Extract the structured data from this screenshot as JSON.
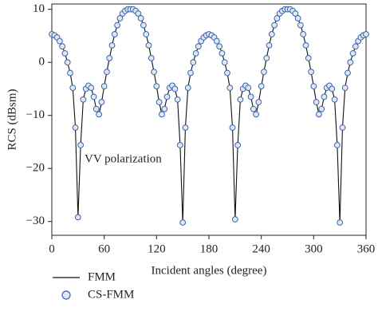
{
  "chart_data": {
    "type": "line",
    "y_label": "RCS (dBsm)",
    "x_label": "Incident angles (degree)",
    "annotation": "VV polarization",
    "x": [
      0,
      3,
      6,
      9,
      12,
      15,
      18,
      21,
      24,
      27,
      30,
      33,
      36,
      39,
      42,
      45,
      48,
      51,
      54,
      57,
      60,
      63,
      66,
      69,
      72,
      75,
      78,
      81,
      84,
      87,
      90,
      93,
      96,
      99,
      102,
      105,
      108,
      111,
      114,
      117,
      120,
      123,
      126,
      129,
      132,
      135,
      138,
      141,
      144,
      147,
      150,
      153,
      156,
      159,
      162,
      165,
      168,
      171,
      174,
      177,
      180,
      183,
      186,
      189,
      192,
      195,
      198,
      201,
      204,
      207,
      210,
      213,
      216,
      219,
      222,
      225,
      228,
      231,
      234,
      237,
      240,
      243,
      246,
      249,
      252,
      255,
      258,
      261,
      264,
      267,
      270,
      273,
      276,
      279,
      282,
      285,
      288,
      291,
      294,
      297,
      300,
      303,
      306,
      309,
      312,
      315,
      318,
      321,
      324,
      327,
      330,
      333,
      336,
      339,
      342,
      345,
      348,
      351,
      354,
      357,
      360
    ],
    "series": [
      {
        "name": "FMM",
        "color": "#111111",
        "marker": "line",
        "values": [
          5.3,
          5.1,
          4.7,
          4.0,
          3.0,
          1.7,
          0.0,
          -2.0,
          -4.8,
          -12.3,
          -29.2,
          -15.6,
          -7.0,
          -5.0,
          -4.4,
          -4.8,
          -6.5,
          -8.8,
          -9.8,
          -7.5,
          -4.5,
          -1.8,
          0.8,
          3.2,
          5.3,
          7.0,
          8.3,
          9.2,
          9.7,
          10.0,
          10.0,
          10.0,
          9.7,
          9.2,
          8.3,
          7.0,
          5.3,
          3.2,
          0.8,
          -1.8,
          -4.5,
          -7.5,
          -9.8,
          -8.8,
          -6.5,
          -4.8,
          -4.4,
          -5.0,
          -7.0,
          -15.6,
          -30.2,
          -12.3,
          -4.8,
          -2.0,
          0.0,
          1.7,
          3.0,
          4.0,
          4.7,
          5.1,
          5.3,
          5.1,
          4.7,
          4.0,
          3.0,
          1.7,
          0.0,
          -2.0,
          -4.8,
          -12.3,
          -29.6,
          -15.6,
          -7.0,
          -5.0,
          -4.4,
          -4.8,
          -6.5,
          -8.8,
          -9.8,
          -7.5,
          -4.5,
          -1.8,
          0.8,
          3.2,
          5.3,
          7.0,
          8.3,
          9.2,
          9.7,
          10.0,
          10.0,
          10.0,
          9.7,
          9.2,
          8.3,
          7.0,
          5.3,
          3.2,
          0.8,
          -1.8,
          -4.5,
          -7.5,
          -9.8,
          -8.8,
          -6.5,
          -4.8,
          -4.4,
          -5.0,
          -7.0,
          -15.6,
          -30.2,
          -12.3,
          -4.8,
          -2.0,
          0.0,
          1.7,
          3.0,
          4.0,
          4.7,
          5.1,
          5.3
        ]
      },
      {
        "name": "CS-FMM",
        "color": "#3a63a8",
        "fill": "#dfe7f4",
        "marker": "circle",
        "values": [
          5.3,
          5.1,
          4.7,
          4.0,
          3.0,
          1.7,
          0.0,
          -2.0,
          -4.8,
          -12.3,
          -29.2,
          -15.6,
          -7.0,
          -5.0,
          -4.4,
          -4.8,
          -6.5,
          -8.8,
          -9.8,
          -7.5,
          -4.5,
          -1.8,
          0.8,
          3.2,
          5.3,
          7.0,
          8.3,
          9.2,
          9.7,
          10.0,
          10.0,
          10.0,
          9.7,
          9.2,
          8.3,
          7.0,
          5.3,
          3.2,
          0.8,
          -1.8,
          -4.5,
          -7.5,
          -9.8,
          -8.8,
          -6.5,
          -4.8,
          -4.4,
          -5.0,
          -7.0,
          -15.6,
          -30.2,
          -12.3,
          -4.8,
          -2.0,
          0.0,
          1.7,
          3.0,
          4.0,
          4.7,
          5.1,
          5.3,
          5.1,
          4.7,
          4.0,
          3.0,
          1.7,
          0.0,
          -2.0,
          -4.8,
          -12.3,
          -29.6,
          -15.6,
          -7.0,
          -5.0,
          -4.4,
          -4.8,
          -6.5,
          -8.8,
          -9.8,
          -7.5,
          -4.5,
          -1.8,
          0.8,
          3.2,
          5.3,
          7.0,
          8.3,
          9.2,
          9.7,
          10.0,
          10.0,
          10.0,
          9.7,
          9.2,
          8.3,
          7.0,
          5.3,
          3.2,
          0.8,
          -1.8,
          -4.5,
          -7.5,
          -9.8,
          -8.8,
          -6.5,
          -4.8,
          -4.4,
          -5.0,
          -7.0,
          -15.6,
          -30.2,
          -12.3,
          -4.8,
          -2.0,
          0.0,
          1.7,
          3.0,
          4.0,
          4.7,
          5.1,
          5.3
        ]
      }
    ],
    "xlim": [
      0,
      360
    ],
    "xticks": [
      0,
      60,
      120,
      180,
      240,
      300,
      360
    ],
    "ylim": [
      -32.6,
      11
    ],
    "yticks": [
      {
        "value": -30,
        "label": "−30"
      },
      {
        "value": -20,
        "label": "−20"
      },
      {
        "value": -10,
        "label": "−10"
      },
      0,
      10
    ]
  }
}
